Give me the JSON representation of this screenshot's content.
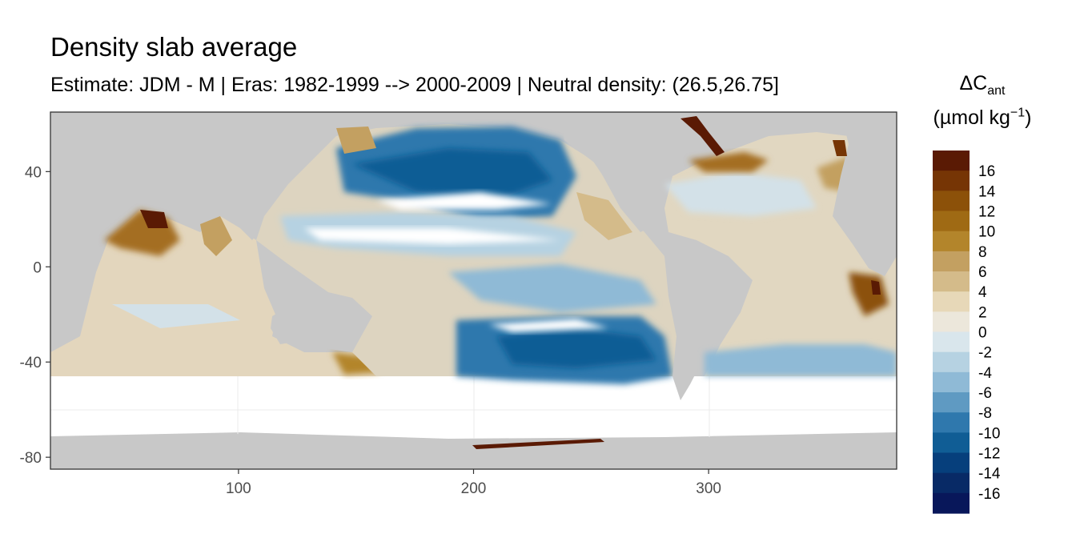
{
  "chart_data": {
    "type": "heatmap",
    "title": "Density slab average",
    "subtitle": "Estimate: JDM - M | Eras: 1982-1999 --> 2000-2009 | Neutral density: (26.5,26.75]",
    "legend_title_main": "ΔC",
    "legend_title_sub": "ant",
    "legend_title_unit": "(µmol kg",
    "legend_title_exp": "−1",
    "legend_title_close": ")",
    "x_ticks": [
      100,
      200,
      300
    ],
    "y_ticks": [
      40,
      0,
      -40,
      -80
    ],
    "xlim": [
      20,
      380
    ],
    "ylim": [
      -85,
      65
    ],
    "legend_labels": [
      "16",
      "14",
      "12",
      "10",
      "8",
      "6",
      "4",
      "2",
      "0",
      "-2",
      "-4",
      "-6",
      "-8",
      "-10",
      "-12",
      "-14",
      "-16"
    ],
    "legend_colors": [
      "#5a1a04",
      "#763505",
      "#8c5109",
      "#9f6a14",
      "#b3852b",
      "#c3a061",
      "#d4bb8a",
      "#e7d8b8",
      "#ece7db",
      "#d9e6ec",
      "#b6d2e2",
      "#8fbad6",
      "#5f9ac2",
      "#2f78ad",
      "#105d95",
      "#063f7c",
      "#082a66",
      "#08175a"
    ],
    "color_land": "#c8c8c8",
    "color_nodata": "#ffffff"
  }
}
